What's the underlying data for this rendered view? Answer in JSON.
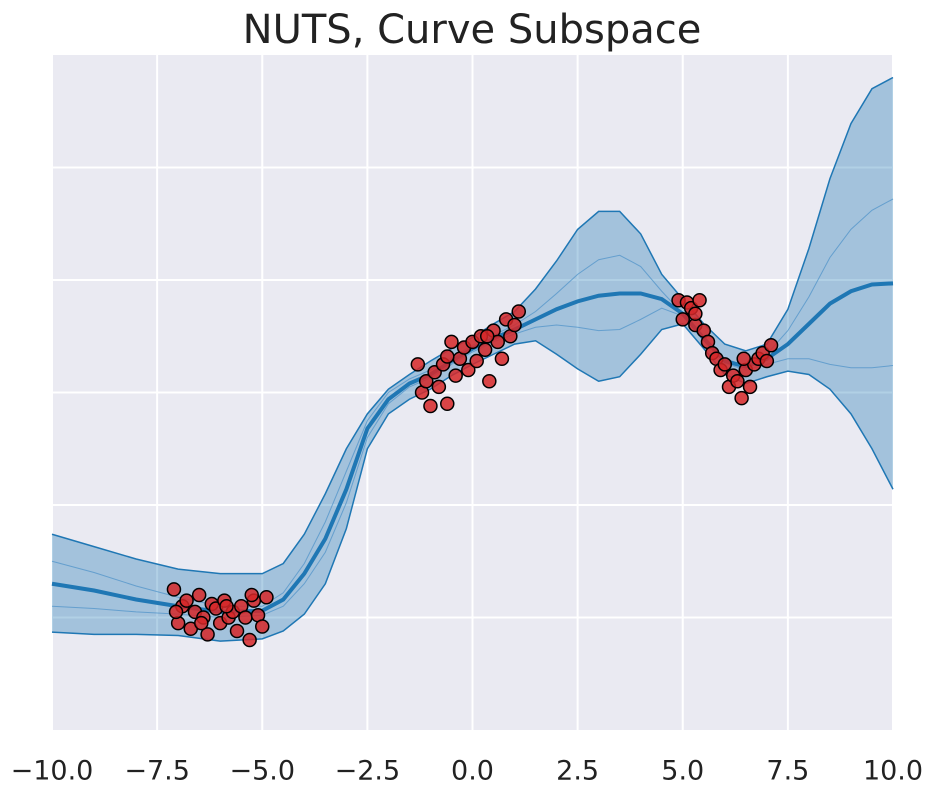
{
  "chart_data": {
    "type": "line",
    "title": "NUTS, Curve Subspace",
    "xlim": [
      -10,
      10
    ],
    "ylim": [
      -4,
      2
    ],
    "xticks": [
      {
        "value": -10,
        "label": "−10.0"
      },
      {
        "value": -7.5,
        "label": "−7.5"
      },
      {
        "value": -5,
        "label": "−5.0"
      },
      {
        "value": -2.5,
        "label": "−2.5"
      },
      {
        "value": 0,
        "label": "0.0"
      },
      {
        "value": 2.5,
        "label": "2.5"
      },
      {
        "value": 5,
        "label": "5.0"
      },
      {
        "value": 7.5,
        "label": "7.5"
      },
      {
        "value": 10,
        "label": "10.0"
      }
    ],
    "yticks": [
      -3,
      -2,
      -1,
      0,
      1
    ],
    "grid": true,
    "x": [
      -10,
      -9,
      -8,
      -7,
      -6,
      -5,
      -4.5,
      -4,
      -3.5,
      -3,
      -2.5,
      -2,
      -1.5,
      -1,
      -0.5,
      0,
      0.5,
      1,
      1.5,
      2,
      2.5,
      3,
      3.5,
      4,
      4.5,
      5,
      5.5,
      6,
      6.5,
      7,
      7.5,
      8,
      8.5,
      9,
      9.5,
      10
    ],
    "band": {
      "color": "#1f77b4",
      "upper": [
        -2.26,
        -2.37,
        -2.48,
        -2.57,
        -2.61,
        -2.61,
        -2.52,
        -2.26,
        -1.9,
        -1.5,
        -1.19,
        -0.97,
        -0.84,
        -0.72,
        -0.61,
        -0.51,
        -0.39,
        -0.28,
        -0.08,
        0.17,
        0.45,
        0.61,
        0.61,
        0.41,
        0.05,
        -0.17,
        -0.39,
        -0.57,
        -0.63,
        -0.57,
        -0.26,
        0.28,
        0.9,
        1.39,
        1.7,
        1.8
      ],
      "lower": [
        -3.13,
        -3.15,
        -3.15,
        -3.16,
        -3.21,
        -3.19,
        -3.12,
        -2.97,
        -2.7,
        -2.21,
        -1.5,
        -1.19,
        -1.06,
        -0.97,
        -0.85,
        -0.75,
        -0.66,
        -0.57,
        -0.54,
        -0.66,
        -0.79,
        -0.9,
        -0.86,
        -0.66,
        -0.44,
        -0.39,
        -0.61,
        -0.84,
        -0.92,
        -0.86,
        -0.81,
        -0.84,
        -0.97,
        -1.19,
        -1.5,
        -1.86
      ]
    },
    "series": [
      {
        "color": "#1f77b4",
        "values": [
          -2.7,
          -2.76,
          -2.84,
          -2.9,
          -2.95,
          -2.94,
          -2.84,
          -2.61,
          -2.3,
          -1.86,
          -1.32,
          -1.06,
          -0.92,
          -0.84,
          -0.72,
          -0.61,
          -0.52,
          -0.44,
          -0.35,
          -0.26,
          -0.19,
          -0.14,
          -0.12,
          -0.12,
          -0.17,
          -0.3,
          -0.52,
          -0.72,
          -0.77,
          -0.7,
          -0.57,
          -0.39,
          -0.21,
          -0.1,
          -0.04,
          -0.03
        ]
      },
      {
        "color": "#4a90c8",
        "values": [
          -2.5,
          -2.6,
          -2.72,
          -2.82,
          -2.9,
          -2.9,
          -2.78,
          -2.52,
          -2.15,
          -1.7,
          -1.25,
          -1.0,
          -0.88,
          -0.8,
          -0.69,
          -0.58,
          -0.49,
          -0.4,
          -0.28,
          -0.12,
          0.05,
          0.18,
          0.22,
          0.12,
          -0.1,
          -0.3,
          -0.5,
          -0.7,
          -0.76,
          -0.66,
          -0.45,
          -0.15,
          0.2,
          0.45,
          0.62,
          0.72
        ]
      },
      {
        "color": "#4a90c8",
        "values": [
          -2.9,
          -2.92,
          -2.95,
          -2.97,
          -3.0,
          -2.98,
          -2.9,
          -2.7,
          -2.42,
          -1.98,
          -1.4,
          -1.1,
          -0.95,
          -0.87,
          -0.75,
          -0.64,
          -0.55,
          -0.48,
          -0.42,
          -0.4,
          -0.42,
          -0.45,
          -0.44,
          -0.35,
          -0.25,
          -0.32,
          -0.54,
          -0.74,
          -0.8,
          -0.75,
          -0.7,
          -0.7,
          -0.75,
          -0.78,
          -0.78,
          -0.76
        ]
      }
    ],
    "scatter": {
      "color": "#d62728",
      "edgecolor": "#000000",
      "x": [
        -7.1,
        -7.0,
        -6.9,
        -6.8,
        -6.7,
        -6.6,
        -6.5,
        -6.4,
        -6.3,
        -6.2,
        -6.1,
        -6.0,
        -5.9,
        -5.8,
        -5.7,
        -5.6,
        -5.5,
        -5.4,
        -5.3,
        -5.2,
        -5.1,
        -5.0,
        -4.9,
        -7.05,
        -6.45,
        -5.85,
        -5.25,
        -1.3,
        -1.2,
        -1.1,
        -1.0,
        -0.9,
        -0.8,
        -0.7,
        -0.6,
        -0.5,
        -0.4,
        -0.3,
        -0.2,
        -0.1,
        0.0,
        0.1,
        0.2,
        0.3,
        0.4,
        0.5,
        0.6,
        0.7,
        0.8,
        0.9,
        1.0,
        1.1,
        -0.6,
        0.35,
        4.9,
        5.0,
        5.1,
        5.2,
        5.3,
        5.4,
        5.5,
        5.6,
        5.7,
        5.8,
        5.9,
        6.0,
        6.1,
        6.2,
        6.3,
        6.4,
        6.5,
        6.6,
        6.7,
        6.8,
        6.9,
        7.0,
        7.1,
        5.3,
        6.45
      ],
      "y": [
        -2.75,
        -3.05,
        -2.9,
        -2.85,
        -3.1,
        -2.95,
        -2.8,
        -3.0,
        -3.15,
        -2.88,
        -2.92,
        -3.05,
        -2.85,
        -3.0,
        -2.95,
        -3.12,
        -2.9,
        -3.0,
        -3.2,
        -2.85,
        -2.98,
        -3.08,
        -2.82,
        -2.95,
        -3.05,
        -2.9,
        -2.8,
        -0.75,
        -1.0,
        -0.9,
        -1.12,
        -0.82,
        -0.95,
        -0.75,
        -1.1,
        -0.55,
        -0.85,
        -0.7,
        -0.6,
        -0.8,
        -0.55,
        -0.72,
        -0.5,
        -0.62,
        -0.9,
        -0.45,
        -0.55,
        -0.7,
        -0.35,
        -0.5,
        -0.4,
        -0.28,
        -0.68,
        -0.5,
        -0.18,
        -0.35,
        -0.2,
        -0.25,
        -0.4,
        -0.18,
        -0.45,
        -0.55,
        -0.65,
        -0.7,
        -0.8,
        -0.75,
        -0.95,
        -0.85,
        -0.9,
        -1.05,
        -0.8,
        -0.95,
        -0.75,
        -0.7,
        -0.65,
        -0.72,
        -0.58,
        -0.3,
        -0.7
      ]
    }
  }
}
